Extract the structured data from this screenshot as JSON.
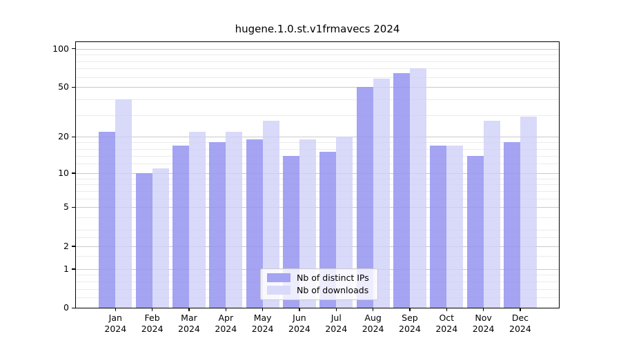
{
  "chart_data": {
    "type": "bar",
    "title": "hugene.1.0.st.v1frmavecs 2024",
    "categories": [
      "Jan",
      "Feb",
      "Mar",
      "Apr",
      "May",
      "Jun",
      "Jul",
      "Aug",
      "Sep",
      "Oct",
      "Nov",
      "Dec"
    ],
    "x_year": "2024",
    "series": [
      {
        "name": "Nb of distinct IPs",
        "color": "#a4a4f2",
        "fill": "rgba(148,148,241,0.85)",
        "values": [
          22,
          10,
          17,
          18,
          19,
          14,
          15,
          50,
          64,
          17,
          14,
          18
        ]
      },
      {
        "name": "Nb of downloads",
        "color": "#d9d9f9",
        "fill": "rgba(208,208,249,0.8)",
        "values": [
          40,
          11,
          22,
          22,
          27,
          19,
          20,
          58,
          70,
          17,
          27,
          29
        ]
      }
    ],
    "y_scale": "log10(1+v)",
    "y_ticks": [
      0,
      1,
      2,
      5,
      10,
      20,
      50,
      100
    ],
    "y_minor_gridlines": [
      0.2,
      0.4,
      0.6,
      0.8,
      1.5,
      2.5,
      3,
      4,
      6,
      7,
      8,
      9,
      12,
      14,
      16,
      18,
      30,
      40,
      60,
      70,
      80,
      90
    ],
    "ylim": [
      0,
      113
    ],
    "xlabel": "",
    "ylabel": "",
    "grid": true,
    "legend_position": "lower center inside"
  }
}
